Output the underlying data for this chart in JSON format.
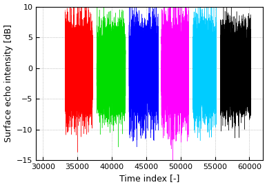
{
  "title": "",
  "xlabel": "Time index [-]",
  "ylabel": "Surface echo intensity [dB]",
  "xlim": [
    29000,
    62000
  ],
  "ylim": [
    -15,
    10
  ],
  "yticks": [
    -15,
    -10,
    -5,
    0,
    5,
    10
  ],
  "xticks": [
    30000,
    35000,
    40000,
    45000,
    50000,
    55000,
    60000
  ],
  "segments": [
    {
      "color": "#ff0000",
      "x_start": 33200,
      "x_end": 37200,
      "seed": 101,
      "amp": 3.5,
      "spike_depth": 11
    },
    {
      "color": "#00dd00",
      "x_start": 37800,
      "x_end": 42000,
      "seed": 202,
      "amp": 3.2,
      "spike_depth": 11
    },
    {
      "color": "#0000ff",
      "x_start": 42500,
      "x_end": 46800,
      "seed": 303,
      "amp": 3.5,
      "spike_depth": 12
    },
    {
      "color": "#ff00ff",
      "x_start": 47200,
      "x_end": 51200,
      "seed": 404,
      "amp": 3.8,
      "spike_depth": 12
    },
    {
      "color": "#00ccff",
      "x_start": 51800,
      "x_end": 55200,
      "seed": 505,
      "amp": 3.5,
      "spike_depth": 11
    },
    {
      "color": "#000000",
      "x_start": 55800,
      "x_end": 60200,
      "seed": 606,
      "amp": 3.2,
      "spike_depth": 8
    }
  ],
  "background_color": "#ffffff",
  "grid_color": "#aaaaaa",
  "linewidth": 0.3,
  "figsize": [
    3.87,
    2.71
  ],
  "dpi": 100
}
